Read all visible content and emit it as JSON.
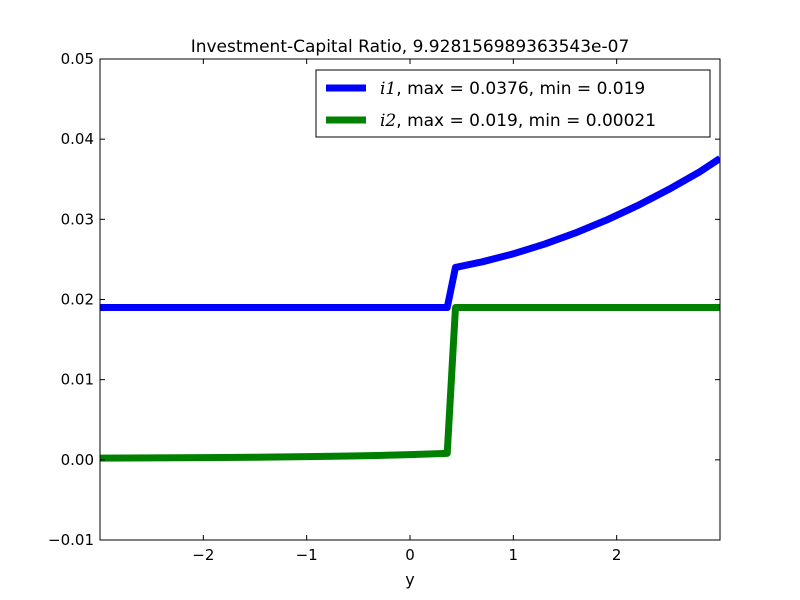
{
  "chart_data": {
    "type": "line",
    "title": "Investment-Capital Ratio, 9.928156989363543e-07",
    "xlabel": "y",
    "ylabel": "",
    "xlim": [
      -3,
      3
    ],
    "ylim": [
      -0.01,
      0.05
    ],
    "xticks": [
      -2,
      -1,
      0,
      1,
      2
    ],
    "xtick_labels": [
      "−2",
      "−1",
      "0",
      "1",
      "2"
    ],
    "yticks": [
      -0.01,
      0.0,
      0.01,
      0.02,
      0.03,
      0.04,
      0.05
    ],
    "ytick_labels": [
      "−0.01",
      "0.00",
      "0.01",
      "0.02",
      "0.03",
      "0.04",
      "0.05"
    ],
    "grid": false,
    "legend_position": "top-right",
    "series": [
      {
        "name": "i1",
        "legend_math": "i1",
        "legend_rest": ", max = 0.0376, min = 0.019",
        "color": "#0000ff",
        "x": [
          -3.0,
          -2.0,
          -1.0,
          0.0,
          0.36,
          0.44,
          0.7,
          1.0,
          1.3,
          1.6,
          1.9,
          2.2,
          2.5,
          2.8,
          3.0
        ],
        "y": [
          0.019,
          0.019,
          0.019,
          0.019,
          0.019,
          0.024,
          0.0247,
          0.0257,
          0.0269,
          0.0283,
          0.0299,
          0.0317,
          0.0337,
          0.0359,
          0.0376
        ]
      },
      {
        "name": "i2",
        "legend_math": "i2",
        "legend_rest": ", max = 0.019, min = 0.00021",
        "color": "#008000",
        "x": [
          -3.0,
          -2.0,
          -1.5,
          -1.0,
          -0.5,
          0.0,
          0.36,
          0.44,
          1.0,
          2.0,
          3.0
        ],
        "y": [
          0.00021,
          0.00028,
          0.00033,
          0.0004,
          0.00049,
          0.00065,
          0.0008,
          0.019,
          0.019,
          0.019,
          0.019
        ]
      }
    ]
  }
}
